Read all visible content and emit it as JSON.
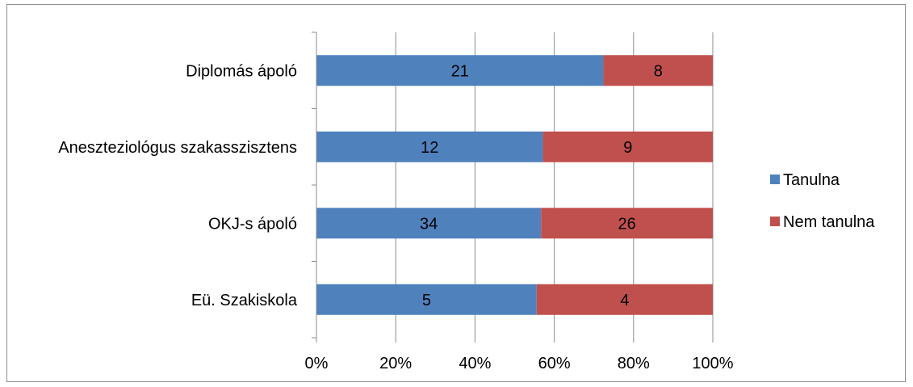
{
  "chart_data": {
    "type": "bar",
    "orientation": "horizontal",
    "stacked": "percent",
    "categories": [
      "Diplomás ápoló",
      "Aneszteziológus szakasszisztens",
      "OKJ-s ápoló",
      "Eü. Szakiskola"
    ],
    "series": [
      {
        "name": "Tanulna",
        "values": [
          21,
          12,
          34,
          5
        ],
        "color": "#4f81bd"
      },
      {
        "name": "Nem tanulna",
        "values": [
          8,
          9,
          26,
          4
        ],
        "color": "#c0504d"
      }
    ],
    "x_ticks": [
      "0%",
      "20%",
      "40%",
      "60%",
      "80%",
      "100%"
    ],
    "xlim": [
      0,
      100
    ],
    "grid": true,
    "legend_position": "right"
  }
}
